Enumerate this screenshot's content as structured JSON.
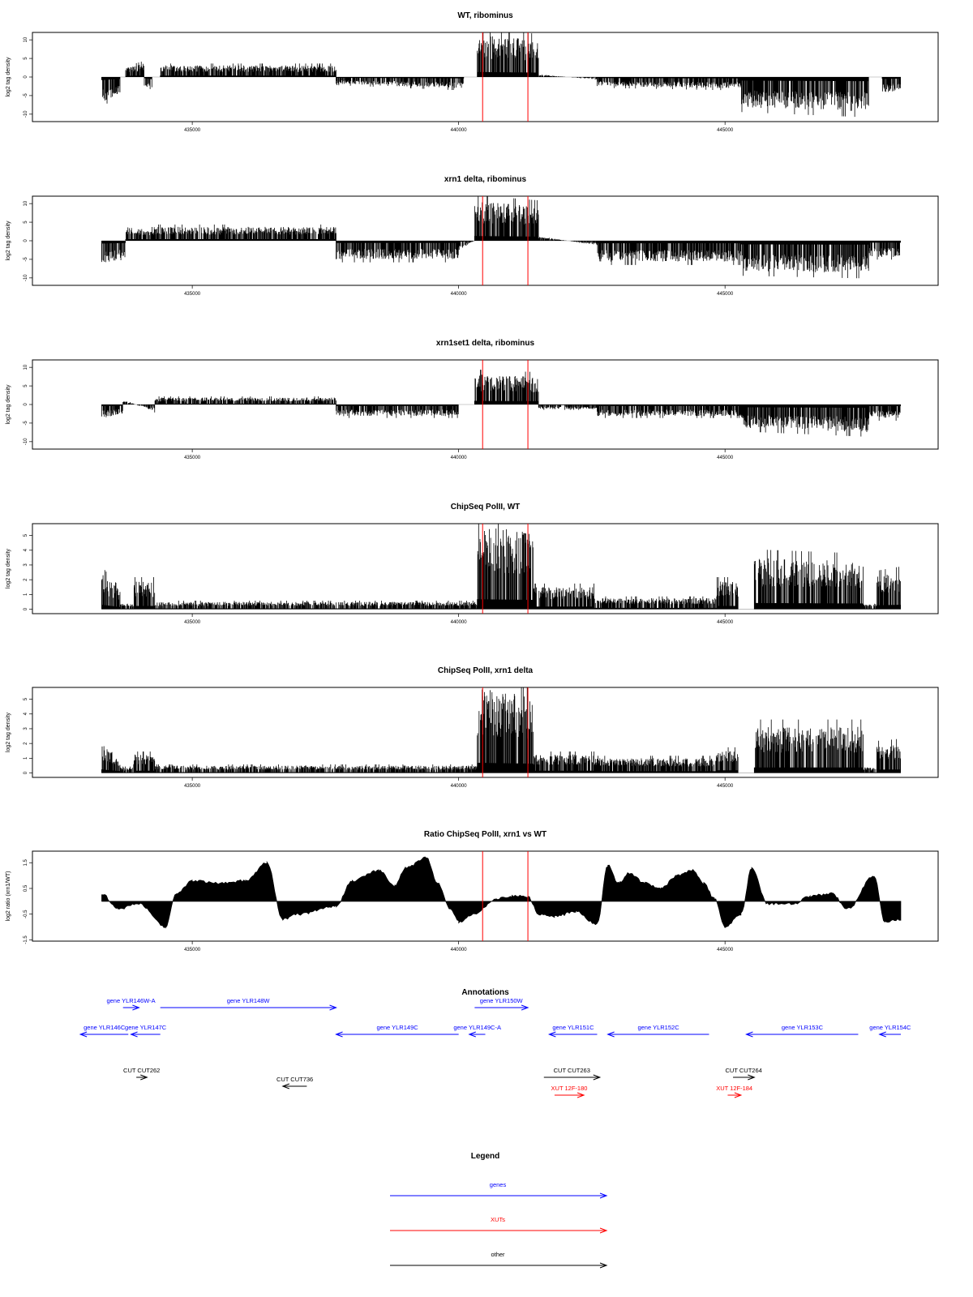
{
  "chart_data": [
    {
      "type": "bar",
      "title": "WT, ribominus",
      "ylabel": "log2 tag density",
      "xlim": [
        432000,
        449000
      ],
      "ylim": [
        -12,
        12
      ],
      "y_ticks": [
        10,
        5,
        0,
        -5,
        -10
      ],
      "x_ticks": [
        435000,
        440000,
        445000
      ],
      "x_tick_labels": [
        "435000",
        "440000",
        "445000"
      ],
      "markers": [
        440450,
        441300
      ],
      "data_from": 433300,
      "data_to": 448300,
      "segments": [
        {
          "x": [
            433300,
            433650
          ],
          "y": [
            -5.5,
            -3.5
          ]
        },
        {
          "x": [
            433650,
            433750
          ],
          "y": [
            0,
            0
          ]
        },
        {
          "x": [
            433750,
            434100
          ],
          "y": [
            2,
            3
          ]
        },
        {
          "x": [
            434100,
            434250
          ],
          "y": [
            -2,
            -4
          ]
        },
        {
          "x": [
            434250,
            434400
          ],
          "y": [
            0,
            0
          ]
        },
        {
          "x": [
            434400,
            437700
          ],
          "y": [
            2.5,
            2.5
          ]
        },
        {
          "x": [
            437700,
            440100
          ],
          "y": [
            -1.5,
            -2.5
          ]
        },
        {
          "x": [
            440100,
            440350
          ],
          "y": [
            0,
            0
          ]
        },
        {
          "x": [
            440350,
            441500
          ],
          "y": [
            9,
            8
          ]
        },
        {
          "x": [
            441500,
            442600
          ],
          "y": [
            0.5,
            -0.5
          ]
        },
        {
          "x": [
            442600,
            445300
          ],
          "y": [
            -2,
            -2.5
          ]
        },
        {
          "x": [
            445300,
            447700
          ],
          "y": [
            -6.5,
            -7.5
          ]
        },
        {
          "x": [
            447700,
            447950
          ],
          "y": [
            0,
            0
          ]
        },
        {
          "x": [
            447950,
            448300
          ],
          "y": [
            -3.5,
            -3
          ]
        }
      ]
    },
    {
      "type": "bar",
      "title": "xrn1 delta, ribominus",
      "ylabel": "log2 tag density",
      "xlim": [
        432000,
        449000
      ],
      "ylim": [
        -12,
        12
      ],
      "y_ticks": [
        10,
        5,
        0,
        -5,
        -10
      ],
      "x_ticks": [
        435000,
        440000,
        445000
      ],
      "x_tick_labels": [
        "435000",
        "440000",
        "445000"
      ],
      "markers": [
        440450,
        441300
      ],
      "data_from": 433300,
      "data_to": 448300,
      "segments": [
        {
          "x": [
            433300,
            433750
          ],
          "y": [
            -5,
            -4
          ]
        },
        {
          "x": [
            433750,
            434300
          ],
          "y": [
            3,
            2.5
          ]
        },
        {
          "x": [
            434300,
            437700
          ],
          "y": [
            3,
            3
          ]
        },
        {
          "x": [
            437700,
            440000
          ],
          "y": [
            -4,
            -4
          ]
        },
        {
          "x": [
            440000,
            440300
          ],
          "y": [
            -2,
            0
          ]
        },
        {
          "x": [
            440300,
            441500
          ],
          "y": [
            8.5,
            7.5
          ]
        },
        {
          "x": [
            441500,
            442600
          ],
          "y": [
            1,
            -1
          ]
        },
        {
          "x": [
            442600,
            445300
          ],
          "y": [
            -4.5,
            -4.5
          ]
        },
        {
          "x": [
            445300,
            447700
          ],
          "y": [
            -6.5,
            -7
          ]
        },
        {
          "x": [
            447700,
            448300
          ],
          "y": [
            -3.5,
            -3.5
          ]
        }
      ]
    },
    {
      "type": "bar",
      "title": "xrn1set1 delta, ribominus",
      "ylabel": "log2 tag density",
      "xlim": [
        432000,
        449000
      ],
      "ylim": [
        -12,
        12
      ],
      "y_ticks": [
        10,
        5,
        0,
        -5,
        -10
      ],
      "x_ticks": [
        435000,
        440000,
        445000
      ],
      "x_tick_labels": [
        "435000",
        "440000",
        "445000"
      ],
      "markers": [
        440450,
        441300
      ],
      "data_from": 433300,
      "data_to": 448300,
      "segments": [
        {
          "x": [
            433300,
            433700
          ],
          "y": [
            -3,
            -2
          ]
        },
        {
          "x": [
            433700,
            434300
          ],
          "y": [
            1,
            -1.5
          ]
        },
        {
          "x": [
            434300,
            437700
          ],
          "y": [
            1.5,
            1.5
          ]
        },
        {
          "x": [
            437700,
            440000
          ],
          "y": [
            -2.5,
            -2.5
          ]
        },
        {
          "x": [
            440000,
            440300
          ],
          "y": [
            0,
            0
          ]
        },
        {
          "x": [
            440300,
            441500
          ],
          "y": [
            6.5,
            6
          ]
        },
        {
          "x": [
            441500,
            442600
          ],
          "y": [
            -1,
            -1
          ]
        },
        {
          "x": [
            442600,
            445300
          ],
          "y": [
            -2.5,
            -2.5
          ]
        },
        {
          "x": [
            445300,
            447700
          ],
          "y": [
            -5,
            -6
          ]
        },
        {
          "x": [
            447700,
            448300
          ],
          "y": [
            -3,
            -3
          ]
        }
      ]
    },
    {
      "type": "bar",
      "title": "ChipSeq PolII, WT",
      "ylabel": "log2 tag density",
      "xlim": [
        432000,
        449000
      ],
      "ylim": [
        -0.3,
        5.8
      ],
      "y_ticks": [
        5,
        4,
        3,
        2,
        1,
        0
      ],
      "x_ticks": [
        435000,
        440000,
        445000
      ],
      "x_tick_labels": [
        "435000",
        "440000",
        "445000"
      ],
      "markers": [
        440450,
        441300
      ],
      "data_from": 433300,
      "data_to": 448300,
      "segments": [
        {
          "x": [
            433300,
            433650
          ],
          "y": [
            2,
            1
          ]
        },
        {
          "x": [
            433650,
            433900
          ],
          "y": [
            0.3,
            0.3
          ]
        },
        {
          "x": [
            433900,
            434300
          ],
          "y": [
            1.5,
            1.5
          ]
        },
        {
          "x": [
            434300,
            440350
          ],
          "y": [
            0.4,
            0.4
          ]
        },
        {
          "x": [
            440350,
            441400
          ],
          "y": [
            4.5,
            4.2
          ]
        },
        {
          "x": [
            441400,
            442550
          ],
          "y": [
            1.2,
            1.2
          ]
        },
        {
          "x": [
            442550,
            444850
          ],
          "y": [
            0.6,
            0.6
          ]
        },
        {
          "x": [
            444850,
            445250
          ],
          "y": [
            1.5,
            1.5
          ]
        },
        {
          "x": [
            445250,
            445550
          ],
          "y": [
            0,
            0
          ]
        },
        {
          "x": [
            445550,
            447600
          ],
          "y": [
            2.8,
            2.6
          ]
        },
        {
          "x": [
            447600,
            447850
          ],
          "y": [
            0.3,
            0.3
          ]
        },
        {
          "x": [
            447850,
            448300
          ],
          "y": [
            1.8,
            2
          ]
        }
      ]
    },
    {
      "type": "bar",
      "title": "ChipSeq PolII, xrn1 delta",
      "ylabel": "log2 tag density",
      "xlim": [
        432000,
        449000
      ],
      "ylim": [
        -0.3,
        5.8
      ],
      "y_ticks": [
        5,
        4,
        3,
        2,
        1,
        0
      ],
      "x_ticks": [
        435000,
        440000,
        445000
      ],
      "x_tick_labels": [
        "435000",
        "440000",
        "445000"
      ],
      "markers": [
        440450,
        441300
      ],
      "data_from": 433300,
      "data_to": 448300,
      "segments": [
        {
          "x": [
            433300,
            433650
          ],
          "y": [
            1.6,
            0.8
          ]
        },
        {
          "x": [
            433650,
            433900
          ],
          "y": [
            0.3,
            0.3
          ]
        },
        {
          "x": [
            433900,
            434300
          ],
          "y": [
            1,
            1
          ]
        },
        {
          "x": [
            434300,
            440350
          ],
          "y": [
            0.4,
            0.4
          ]
        },
        {
          "x": [
            440350,
            441400
          ],
          "y": [
            4.6,
            4.2
          ]
        },
        {
          "x": [
            441400,
            442550
          ],
          "y": [
            1,
            1
          ]
        },
        {
          "x": [
            442550,
            444850
          ],
          "y": [
            0.8,
            0.8
          ]
        },
        {
          "x": [
            444850,
            445250
          ],
          "y": [
            1.2,
            1.2
          ]
        },
        {
          "x": [
            445250,
            445550
          ],
          "y": [
            0,
            0
          ]
        },
        {
          "x": [
            445550,
            447600
          ],
          "y": [
            2.5,
            2.5
          ]
        },
        {
          "x": [
            447600,
            447850
          ],
          "y": [
            0.3,
            0.3
          ]
        },
        {
          "x": [
            447850,
            448300
          ],
          "y": [
            1.5,
            1.6
          ]
        }
      ]
    },
    {
      "type": "area",
      "title": "Ratio ChipSeq PolII, xrn1 vs WT",
      "ylabel": "log2 ratio (xrn1/WT)",
      "xlim": [
        432000,
        449000
      ],
      "ylim": [
        -1.55,
        1.95
      ],
      "baseline": 0,
      "y_ticks": [
        1.5,
        0.5,
        -0.5,
        -1.5
      ],
      "y_tick_labels": [
        "1.5",
        "0.5",
        "-0.5",
        "-1.5"
      ],
      "x_ticks": [
        435000,
        440000,
        445000
      ],
      "x_tick_labels": [
        "435000",
        "440000",
        "445000"
      ],
      "markers": [
        440450,
        441300
      ],
      "x": [
        433300,
        433600,
        434000,
        434500,
        434700,
        435000,
        435500,
        436000,
        436400,
        436700,
        437000,
        437700,
        438000,
        438500,
        438800,
        439000,
        439400,
        439600,
        439850,
        440000,
        440300,
        440700,
        441000,
        441300,
        441500,
        441800,
        442200,
        442600,
        442800,
        443000,
        443200,
        443500,
        443800,
        444100,
        444400,
        444600,
        444800,
        445000,
        445300,
        445500,
        445800,
        446000,
        446300,
        446600,
        447000,
        447300,
        447800,
        448000,
        448300
      ],
      "y": [
        0.3,
        -0.3,
        -0.1,
        -1.0,
        0.3,
        0.8,
        0.7,
        0.8,
        1.5,
        -0.7,
        -0.5,
        -0.2,
        0.8,
        1.2,
        0.6,
        1.3,
        1.7,
        0.7,
        -0.3,
        -0.8,
        -0.5,
        0.1,
        0.2,
        0.2,
        -0.5,
        -0.6,
        -0.4,
        -0.9,
        1.4,
        0.7,
        1.1,
        0.7,
        0.5,
        1.0,
        1.2,
        0.7,
        0.1,
        -1.0,
        -0.5,
        1.3,
        -0.1,
        -0.1,
        -0.1,
        0.2,
        0.3,
        -0.3,
        1.0,
        -0.8,
        -0.7
      ]
    }
  ],
  "annotations": {
    "title": "Annotations",
    "features": [
      {
        "label": "gene YLR146C",
        "kind": "gene",
        "start": 432900,
        "end": 433800,
        "strand": "-",
        "row": 1
      },
      {
        "label": "gene YLR146W-A",
        "kind": "gene",
        "start": 433700,
        "end": 434000,
        "strand": "+",
        "row": 0
      },
      {
        "label": "gene YLR147C",
        "kind": "gene",
        "start": 433850,
        "end": 434400,
        "strand": "-",
        "row": 1
      },
      {
        "label": "gene YLR148W",
        "kind": "gene",
        "start": 434400,
        "end": 437700,
        "strand": "+",
        "row": 0
      },
      {
        "label": "gene YLR149C",
        "kind": "gene",
        "start": 437700,
        "end": 440000,
        "strand": "-",
        "row": 1
      },
      {
        "label": "gene YLR149C-A",
        "kind": "gene",
        "start": 440200,
        "end": 440500,
        "strand": "-",
        "row": 1
      },
      {
        "label": "gene YLR150W",
        "kind": "gene",
        "start": 440300,
        "end": 441300,
        "strand": "+",
        "row": 0
      },
      {
        "label": "gene YLR151C",
        "kind": "gene",
        "start": 441700,
        "end": 442600,
        "strand": "-",
        "row": 1
      },
      {
        "label": "gene YLR152C",
        "kind": "gene",
        "start": 442800,
        "end": 444700,
        "strand": "-",
        "row": 1
      },
      {
        "label": "gene YLR153C",
        "kind": "gene",
        "start": 445400,
        "end": 447500,
        "strand": "-",
        "row": 1
      },
      {
        "label": "gene YLR154C",
        "kind": "gene",
        "start": 447900,
        "end": 448300,
        "strand": "-",
        "row": 1
      },
      {
        "label": "CUT CUT262",
        "kind": "other",
        "start": 433950,
        "end": 434150,
        "strand": "+",
        "row": 2
      },
      {
        "label": "CUT CUT736",
        "kind": "other",
        "start": 436700,
        "end": 437150,
        "strand": "-",
        "row": 3
      },
      {
        "label": "CUT CUT263",
        "kind": "other",
        "start": 441600,
        "end": 442650,
        "strand": "+",
        "row": 2
      },
      {
        "label": "CUT CUT264",
        "kind": "other",
        "start": 445150,
        "end": 445550,
        "strand": "+",
        "row": 2
      },
      {
        "label": "XUT 12F-180",
        "kind": "xut",
        "start": 441800,
        "end": 442350,
        "strand": "+",
        "row": 4
      },
      {
        "label": "XUT 12F-184",
        "kind": "xut",
        "start": 445050,
        "end": 445300,
        "strand": "+",
        "row": 4
      }
    ]
  },
  "legend": {
    "title": "Legend",
    "items": [
      {
        "label": "genes",
        "color": "#0000ff"
      },
      {
        "label": "XUTs",
        "color": "#ff0000"
      },
      {
        "label": "other",
        "color": "#000000"
      }
    ]
  },
  "colors": {
    "gene": "#0000ff",
    "xut": "#ff0000",
    "other": "#000000",
    "marker": "#ff0000",
    "bars": "#000000"
  }
}
